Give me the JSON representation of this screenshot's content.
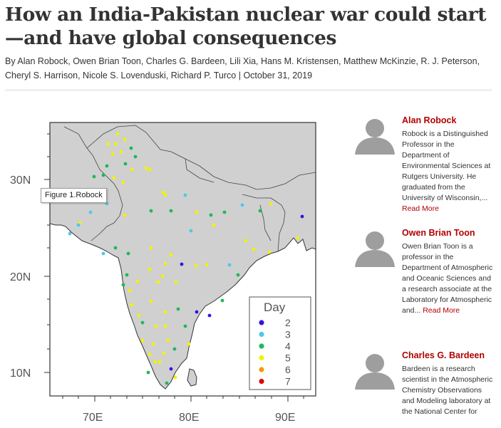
{
  "article": {
    "title_line1": "How an India-Pakistan nuclear war could start",
    "title_line2": "—and have global consequences",
    "byline_prefix": "By ",
    "authors_line1": "Alan Robock, Owen Brian Toon, Charles G. Bardeen, Lili Xia, Hans M. Kristensen, Matthew McKinzie, R. J. Peterson,",
    "authors_line2": "Cheryl S. Harrison, Nicole S. Lovenduski, Richard P. Turco",
    "separator": "|",
    "date": "October 31, 2019"
  },
  "figure": {
    "tooltip": "Figure 1.Robock",
    "lat_labels": [
      "30N",
      "20N",
      "10N"
    ],
    "lon_labels": [
      "70E",
      "80E",
      "90E"
    ],
    "legend_title": "Day",
    "legend_items": [
      {
        "label": "2",
        "color": "#3b0fe6"
      },
      {
        "label": "3",
        "color": "#4fc8e8"
      },
      {
        "label": "4",
        "color": "#1fb85a"
      },
      {
        "label": "5",
        "color": "#f2f200"
      },
      {
        "label": "6",
        "color": "#f39a00"
      },
      {
        "label": "7",
        "color": "#e00000"
      }
    ],
    "map_land_color": "#d0d0d0",
    "map_ocean_color": "#ffffff"
  },
  "authors": [
    {
      "name": "Alan Robock",
      "bio": "Robock is a Distinguished Professor in the Department of Environmental Sciences at Rutgers University. He graduated from the University of Wisconsin,...",
      "more": "Read More"
    },
    {
      "name": "Owen Brian Toon",
      "bio": "Owen Brian Toon is a professor in the Department of Atmospheric and Oceanic Sciences and a research associate at the Laboratory for Atmospheric and...",
      "more": "Read More"
    },
    {
      "name": "Charles G. Bardeen",
      "bio": "Bardeen is a research scientist in the Atmospheric Chemistry Observations and Modeling laboratory at the National Center for",
      "more": ""
    }
  ],
  "icons": {
    "avatar": "person-silhouette-icon"
  }
}
